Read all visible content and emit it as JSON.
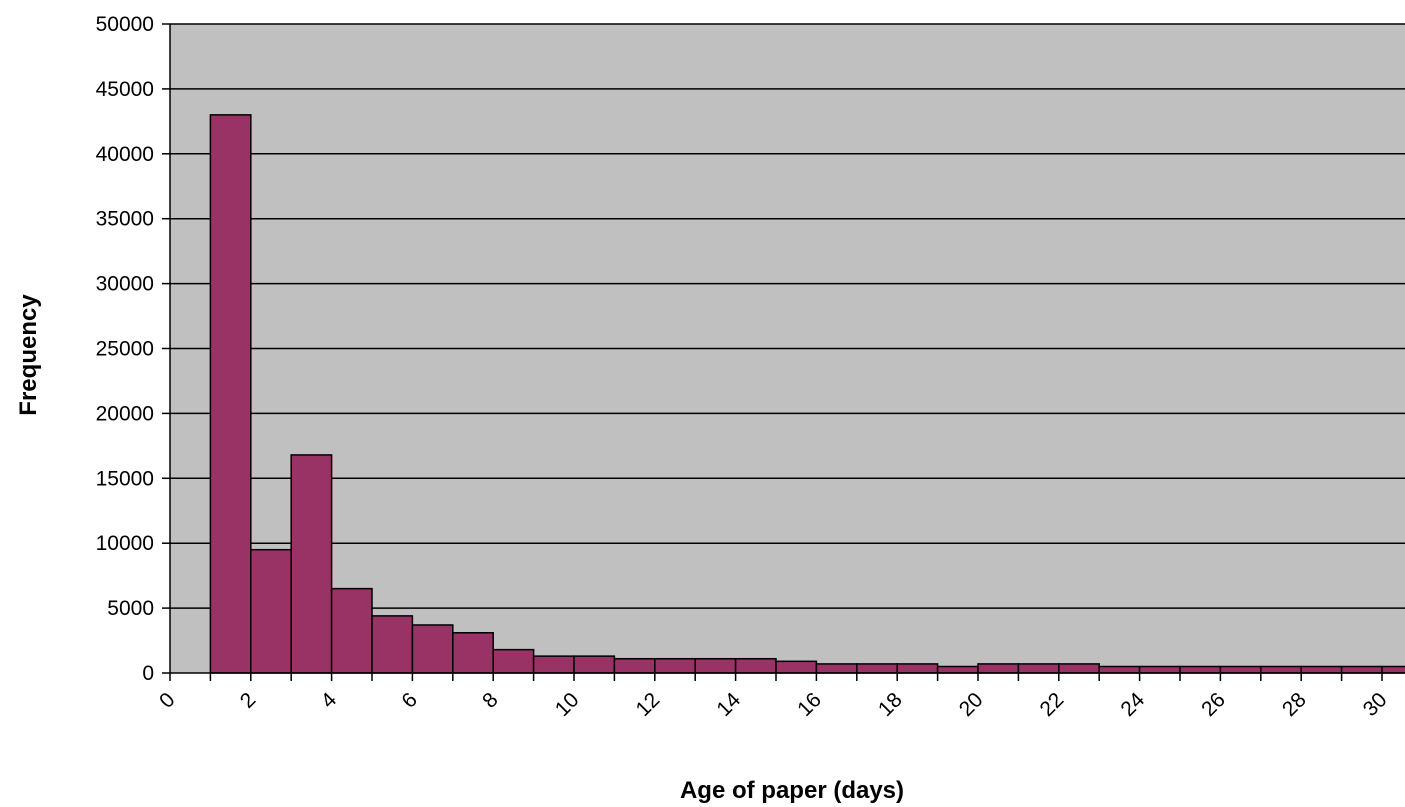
{
  "chart_data": {
    "type": "bar",
    "title": "",
    "xlabel": "Age of paper (days)",
    "ylabel": "Frequency",
    "ylim": [
      0,
      50000
    ],
    "yticks": [
      0,
      5000,
      10000,
      15000,
      20000,
      25000,
      30000,
      35000,
      40000,
      45000,
      50000
    ],
    "xticks": [
      0,
      2,
      4,
      6,
      8,
      10,
      12,
      14,
      16,
      18,
      20,
      22,
      24,
      26,
      28,
      30
    ],
    "grid": true,
    "legend": "none",
    "colors": {
      "bar": "#993366",
      "plot_bg": "#c0c0c0",
      "gridline": "#000000"
    },
    "categories": [
      1,
      2,
      3,
      4,
      5,
      6,
      7,
      8,
      9,
      10,
      11,
      12,
      13,
      14,
      15,
      16,
      17,
      18,
      19,
      20,
      21,
      22,
      23,
      24,
      25,
      26,
      27,
      28,
      29,
      30
    ],
    "values": [
      43000,
      9500,
      16800,
      6500,
      4400,
      3700,
      3100,
      1800,
      1300,
      1300,
      1100,
      1100,
      1100,
      1100,
      900,
      700,
      700,
      700,
      500,
      700,
      700,
      700,
      500,
      500,
      500,
      500,
      500,
      500,
      500,
      500
    ]
  }
}
